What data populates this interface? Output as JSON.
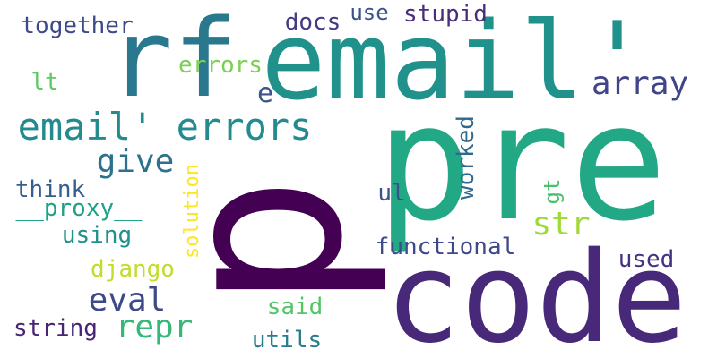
{
  "words": [
    {
      "text": "p",
      "color": "#440154"
    },
    {
      "text": "pre",
      "color": "#22a884"
    },
    {
      "text": "code",
      "color": "#482878"
    },
    {
      "text": "email'",
      "color": "#21918c"
    },
    {
      "text": "rf",
      "color": "#2a788e"
    },
    {
      "text": "email' errors",
      "color": "#238a8d"
    },
    {
      "text": "array",
      "color": "#414487"
    },
    {
      "text": "give",
      "color": "#2c728e"
    },
    {
      "text": "e",
      "color": "#3b528b"
    },
    {
      "text": "errors",
      "color": "#7ad151"
    },
    {
      "text": "together",
      "color": "#3e4989"
    },
    {
      "text": "docs",
      "color": "#443983"
    },
    {
      "text": "use",
      "color": "#3b528b"
    },
    {
      "text": "stupid",
      "color": "#472d7b"
    },
    {
      "text": "lt",
      "color": "#5ec962"
    },
    {
      "text": "think",
      "color": "#355f8d"
    },
    {
      "text": "__proxy__",
      "color": "#1fa187"
    },
    {
      "text": "using",
      "color": "#21918c"
    },
    {
      "text": "django",
      "color": "#bddf26"
    },
    {
      "text": "eval",
      "color": "#3e4989"
    },
    {
      "text": "repr",
      "color": "#35b779"
    },
    {
      "text": "string",
      "color": "#482475"
    },
    {
      "text": "solution",
      "color": "#fde725"
    },
    {
      "text": "worked",
      "color": "#31688e"
    },
    {
      "text": "gt",
      "color": "#4ac16d"
    },
    {
      "text": "ul",
      "color": "#3b528b"
    },
    {
      "text": "str",
      "color": "#a0da39"
    },
    {
      "text": "functional",
      "color": "#3e4989"
    },
    {
      "text": "used",
      "color": "#46327e"
    },
    {
      "text": "said",
      "color": "#52c569"
    },
    {
      "text": "utils",
      "color": "#287c8e"
    }
  ]
}
